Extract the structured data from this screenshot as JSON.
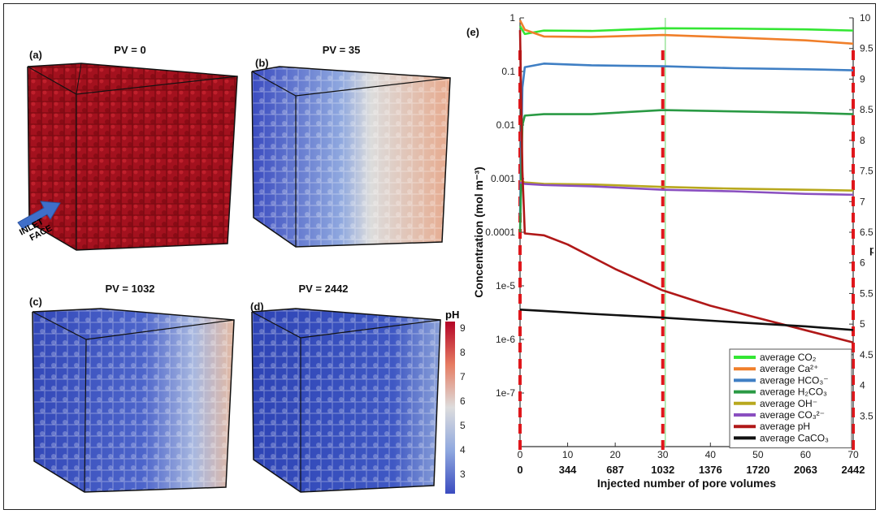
{
  "left_panels": [
    {
      "letter": "(a)",
      "title": "PV = 0"
    },
    {
      "letter": "(b)",
      "title": "PV = 35"
    },
    {
      "letter": "(c)",
      "title": "PV = 1032"
    },
    {
      "letter": "(d)",
      "title": "PV = 2442"
    }
  ],
  "inlet_label_1": "INLET",
  "inlet_label_2": "FACE",
  "colorbar": {
    "title": "pH",
    "ticks": [
      "9",
      "8",
      "7",
      "6",
      "5",
      "4",
      "3"
    ]
  },
  "colors": {
    "cube_a": "#a3111e",
    "low": "#3b4cc0",
    "high": "#b40426"
  },
  "chart_data": {
    "type": "line",
    "panel_letter": "(e)",
    "xlabel": "Injected number of pore volumes",
    "ylabel": "Concentration (mol m⁻³)",
    "ylabel_right": "pH",
    "x_top_ticks": [
      "0",
      "10",
      "20",
      "30",
      "40",
      "50",
      "60",
      "70"
    ],
    "x_bottom_ticks": [
      "0",
      "344",
      "687",
      "1032",
      "1376",
      "1720",
      "2063",
      "2442"
    ],
    "y_left_ticks": [
      "1",
      "0.1",
      "0.01",
      "0.001",
      "0.0001",
      "1e-5",
      "1e-6",
      "1e-7"
    ],
    "y_left_log_range": [
      -8,
      0
    ],
    "y_right_ticks": [
      "10",
      "9.5",
      "9",
      "8.5",
      "8",
      "7.5",
      "7",
      "6.5",
      "6",
      "5.5",
      "5",
      "4.5",
      "4",
      "3.5"
    ],
    "y_right_range": [
      3,
      10
    ],
    "x_range": [
      0,
      70
    ],
    "vlines_red": [
      0,
      30,
      70
    ],
    "vline_green": 30,
    "series": [
      {
        "name": "average CO₂",
        "color": "#33e633",
        "axis": "left",
        "points": [
          [
            0,
            0.7
          ],
          [
            1,
            0.5
          ],
          [
            5,
            0.58
          ],
          [
            15,
            0.57
          ],
          [
            30,
            0.64
          ],
          [
            45,
            0.63
          ],
          [
            60,
            0.61
          ],
          [
            70,
            0.58
          ]
        ]
      },
      {
        "name": "average Ca²⁺",
        "color": "#f07f2a",
        "axis": "left",
        "points": [
          [
            0,
            0.9
          ],
          [
            1,
            0.6
          ],
          [
            5,
            0.45
          ],
          [
            15,
            0.44
          ],
          [
            30,
            0.48
          ],
          [
            45,
            0.43
          ],
          [
            60,
            0.38
          ],
          [
            70,
            0.33
          ]
        ]
      },
      {
        "name": "average HCO₃⁻",
        "color": "#3f7fc4",
        "axis": "left",
        "points": [
          [
            0,
            0.0002
          ],
          [
            0.5,
            0.05
          ],
          [
            1,
            0.12
          ],
          [
            5,
            0.14
          ],
          [
            15,
            0.13
          ],
          [
            30,
            0.125
          ],
          [
            45,
            0.115
          ],
          [
            60,
            0.11
          ],
          [
            70,
            0.105
          ]
        ]
      },
      {
        "name": "average H₂CO₃",
        "color": "#2a9a44",
        "axis": "left",
        "points": [
          [
            0,
            0.0001
          ],
          [
            0.5,
            0.01
          ],
          [
            1,
            0.015
          ],
          [
            5,
            0.016
          ],
          [
            15,
            0.016
          ],
          [
            30,
            0.019
          ],
          [
            45,
            0.018
          ],
          [
            60,
            0.017
          ],
          [
            70,
            0.016
          ]
        ]
      },
      {
        "name": "average OH⁻",
        "color": "#b8a81e",
        "axis": "left",
        "points": [
          [
            0,
            0.0009
          ],
          [
            1,
            0.00085
          ],
          [
            5,
            0.0008
          ],
          [
            15,
            0.00078
          ],
          [
            30,
            0.0007
          ],
          [
            45,
            0.00065
          ],
          [
            60,
            0.00062
          ],
          [
            70,
            0.0006
          ]
        ]
      },
      {
        "name": "average CO₃²⁻",
        "color": "#8a4fc0",
        "axis": "left",
        "points": [
          [
            0,
            0.00085
          ],
          [
            1,
            0.0008
          ],
          [
            5,
            0.00076
          ],
          [
            15,
            0.00072
          ],
          [
            30,
            0.00062
          ],
          [
            45,
            0.00058
          ],
          [
            60,
            0.00052
          ],
          [
            70,
            0.0005
          ]
        ]
      },
      {
        "name": "average pH",
        "color": "#b01818",
        "axis": "right",
        "points": [
          [
            0,
            9.8
          ],
          [
            0.5,
            7.5
          ],
          [
            1,
            6.48
          ],
          [
            5,
            6.45
          ],
          [
            10,
            6.3
          ],
          [
            20,
            5.9
          ],
          [
            30,
            5.55
          ],
          [
            40,
            5.3
          ],
          [
            50,
            5.1
          ],
          [
            60,
            4.9
          ],
          [
            70,
            4.7
          ]
        ]
      },
      {
        "name": "average CaCO₃",
        "color": "#111111",
        "axis": "left",
        "points": [
          [
            0,
            3.6e-06
          ],
          [
            5,
            3.4e-06
          ],
          [
            15,
            3e-06
          ],
          [
            30,
            2.55e-06
          ],
          [
            45,
            2.1e-06
          ],
          [
            60,
            1.75e-06
          ],
          [
            70,
            1.5e-06
          ]
        ]
      }
    ]
  }
}
